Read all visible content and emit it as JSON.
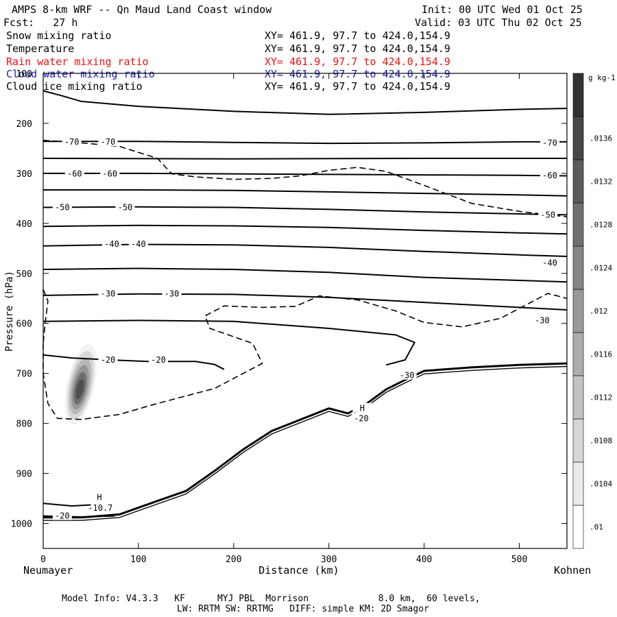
{
  "header": {
    "title": "AMPS 8-km WRF -- Qn Maud Land Coast window",
    "init": "Init: 00 UTC Wed 01 Oct 25",
    "fcst": "Fcst:   27 h",
    "valid": "Valid: 03 UTC Thu 02 Oct 25"
  },
  "fields": [
    {
      "name": "Snow mixing ratio",
      "xy": "XY= 461.9, 97.7 to 424.0,154.9",
      "color": "#000000"
    },
    {
      "name": "Temperature",
      "xy": "XY= 461.9, 97.7 to 424.0,154.9",
      "color": "#000000"
    },
    {
      "name": "Rain water mixing ratio",
      "xy": "XY= 461.9, 97.7 to 424.0,154.9",
      "color": "#ee1111"
    },
    {
      "name": "Cloud water mixing ratio",
      "xy": "XY= 461.9, 97.7 to 424.0,154.9",
      "color": "#1a1aaa"
    },
    {
      "name": "Cloud ice mixing ratio",
      "xy": "XY= 461.9, 97.7 to 424.0,154.9",
      "color": "#000000"
    }
  ],
  "left_label": "Neumayer",
  "right_label": "Kohnen",
  "footer": {
    "line1": "Model Info: V4.3.3   KF      MYJ PBL  Morrison             8.0 km,  60 levels,",
    "line2": "LW: RRTM SW: RRTMG   DIFF: simple KM: 2D Smagor"
  },
  "chart_data": {
    "type": "cross-section contour",
    "xlabel": "Distance (km)",
    "ylabel": "Pressure (hPa)",
    "xlim": [
      0,
      550
    ],
    "ylim": [
      1050,
      100
    ],
    "x_ticks": [
      0,
      100,
      200,
      300,
      400,
      500
    ],
    "x_tick_labels": [
      "0",
      "100",
      "200",
      "300",
      "400",
      "500"
    ],
    "y_ticks": [
      100,
      200,
      300,
      400,
      500,
      600,
      700,
      800,
      900,
      1000
    ],
    "y_tick_labels": [
      "100",
      "200",
      "300",
      "400",
      "500",
      "600",
      "700",
      "800",
      "900",
      "1000"
    ],
    "colorbar": {
      "unit": "g kg-1",
      "levels": [
        0.01,
        0.0104,
        0.0108,
        0.0112,
        0.0116,
        0.012,
        0.0124,
        0.0128,
        0.0132,
        0.0136,
        0.014
      ],
      "labels": [
        ".01",
        ".0104",
        ".0108",
        ".0112",
        ".0116",
        ".012",
        ".0124",
        ".0128",
        ".0132",
        ".0136"
      ]
    },
    "temperature_contours": [
      {
        "id": "t1",
        "pts": [
          [
            0,
            135
          ],
          [
            20,
            145
          ],
          [
            40,
            156
          ],
          [
            100,
            166
          ],
          [
            200,
            176
          ],
          [
            300,
            182
          ],
          [
            400,
            178
          ],
          [
            500,
            172
          ],
          [
            550,
            170
          ]
        ]
      },
      {
        "id": "t2",
        "pts": [
          [
            0,
            236
          ],
          [
            100,
            236
          ],
          [
            200,
            238
          ],
          [
            300,
            240
          ],
          [
            400,
            239
          ],
          [
            500,
            237
          ],
          [
            550,
            237
          ]
        ]
      },
      {
        "id": "t3",
        "pts": [
          [
            0,
            270
          ],
          [
            200,
            271
          ],
          [
            400,
            270
          ],
          [
            550,
            270
          ]
        ]
      },
      {
        "id": "t4",
        "pts": [
          [
            0,
            300
          ],
          [
            100,
            300
          ],
          [
            200,
            301
          ],
          [
            300,
            302
          ],
          [
            400,
            303
          ],
          [
            500,
            304
          ],
          [
            550,
            305
          ]
        ]
      },
      {
        "id": "t5",
        "pts": [
          [
            0,
            333
          ],
          [
            100,
            333
          ],
          [
            200,
            334
          ],
          [
            300,
            337
          ],
          [
            400,
            340
          ],
          [
            500,
            343
          ],
          [
            550,
            345
          ]
        ]
      },
      {
        "id": "t6",
        "pts": [
          [
            0,
            368
          ],
          [
            100,
            367
          ],
          [
            200,
            368
          ],
          [
            300,
            372
          ],
          [
            400,
            377
          ],
          [
            500,
            381
          ],
          [
            550,
            383
          ]
        ]
      },
      {
        "id": "t7",
        "pts": [
          [
            0,
            406
          ],
          [
            100,
            404
          ],
          [
            200,
            405
          ],
          [
            300,
            408
          ],
          [
            400,
            414
          ],
          [
            500,
            419
          ],
          [
            550,
            421
          ]
        ]
      },
      {
        "id": "t8",
        "pts": [
          [
            0,
            445
          ],
          [
            100,
            442
          ],
          [
            200,
            443
          ],
          [
            300,
            448
          ],
          [
            400,
            456
          ],
          [
            500,
            463
          ],
          [
            550,
            466
          ]
        ]
      },
      {
        "id": "t9",
        "pts": [
          [
            0,
            492
          ],
          [
            100,
            490
          ],
          [
            200,
            492
          ],
          [
            300,
            498
          ],
          [
            400,
            508
          ],
          [
            500,
            514
          ],
          [
            550,
            517
          ]
        ]
      },
      {
        "id": "t10",
        "pts": [
          [
            0,
            544
          ],
          [
            100,
            541
          ],
          [
            200,
            542
          ],
          [
            300,
            548
          ],
          [
            400,
            558
          ],
          [
            500,
            568
          ],
          [
            550,
            573
          ]
        ]
      },
      {
        "id": "t11",
        "pts": [
          [
            0,
            596
          ],
          [
            100,
            594
          ],
          [
            200,
            596
          ],
          [
            300,
            610
          ],
          [
            370,
            623
          ],
          [
            390,
            638
          ],
          [
            380,
            673
          ],
          [
            360,
            683
          ]
        ]
      },
      {
        "id": "t12",
        "pts": [
          [
            0,
            663
          ],
          [
            30,
            669
          ],
          [
            70,
            673
          ],
          [
            110,
            676
          ],
          [
            160,
            676
          ],
          [
            180,
            682
          ],
          [
            190,
            692
          ]
        ]
      },
      {
        "id": "t13",
        "pts": [
          [
            0,
            985
          ],
          [
            40,
            987
          ],
          [
            75,
            985
          ]
        ]
      },
      {
        "id": "t14",
        "pts": [
          [
            0,
            960
          ],
          [
            30,
            965
          ],
          [
            60,
            962
          ]
        ]
      }
    ],
    "ice_contour": {
      "pts": [
        [
          0,
          1048
        ],
        [
          0,
          1045
        ]
      ]
    },
    "snow_contour_dashed": [
      {
        "id": "s1",
        "pts": [
          [
            0,
            234
          ],
          [
            40,
            239
          ],
          [
            80,
            246
          ],
          [
            120,
            270
          ],
          [
            135,
            301
          ],
          [
            160,
            307
          ],
          [
            200,
            312
          ],
          [
            240,
            310
          ],
          [
            270,
            305
          ],
          [
            300,
            294
          ],
          [
            330,
            288
          ],
          [
            360,
            296
          ],
          [
            400,
            324
          ],
          [
            450,
            360
          ],
          [
            500,
            376
          ],
          [
            550,
            387
          ]
        ]
      },
      {
        "id": "s2",
        "pts": [
          [
            0,
            532
          ],
          [
            5,
            555
          ],
          [
            2,
            600
          ],
          [
            0,
            640
          ]
        ]
      },
      {
        "id": "s3",
        "pts": [
          [
            0,
            640
          ],
          [
            0,
            700
          ],
          [
            5,
            760
          ],
          [
            15,
            790
          ],
          [
            40,
            792
          ],
          [
            80,
            782
          ],
          [
            120,
            760
          ],
          [
            180,
            730
          ],
          [
            230,
            680
          ],
          [
            220,
            640
          ],
          [
            175,
            610
          ],
          [
            170,
            585
          ],
          [
            190,
            565
          ],
          [
            230,
            568
          ],
          [
            265,
            566
          ],
          [
            290,
            545
          ],
          [
            330,
            553
          ],
          [
            370,
            575
          ],
          [
            400,
            598
          ],
          [
            440,
            607
          ],
          [
            480,
            590
          ],
          [
            510,
            560
          ],
          [
            530,
            540
          ],
          [
            550,
            550
          ]
        ]
      }
    ],
    "terrain": {
      "pts": [
        [
          0,
          988
        ],
        [
          40,
          988
        ],
        [
          80,
          982
        ],
        [
          120,
          955
        ],
        [
          150,
          935
        ],
        [
          180,
          895
        ],
        [
          210,
          852
        ],
        [
          240,
          815
        ],
        [
          260,
          800
        ],
        [
          280,
          785
        ],
        [
          300,
          770
        ],
        [
          320,
          780
        ],
        [
          340,
          760
        ],
        [
          360,
          732
        ],
        [
          380,
          713
        ],
        [
          400,
          695
        ],
        [
          450,
          688
        ],
        [
          500,
          683
        ],
        [
          550,
          680
        ]
      ]
    },
    "labels": [
      {
        "text": "-70",
        "x": 30,
        "p": 237
      },
      {
        "text": "-70",
        "x": 68,
        "p": 237
      },
      {
        "text": "-70",
        "x": 532,
        "p": 239
      },
      {
        "text": "-60",
        "x": 33,
        "p": 301
      },
      {
        "text": "-60",
        "x": 70,
        "p": 301
      },
      {
        "text": "-60",
        "x": 532,
        "p": 304
      },
      {
        "text": "-50",
        "x": 20,
        "p": 368
      },
      {
        "text": "-50",
        "x": 86,
        "p": 368
      },
      {
        "text": "-50",
        "x": 530,
        "p": 383
      },
      {
        "text": "-40",
        "x": 72,
        "p": 441
      },
      {
        "text": "-40",
        "x": 100,
        "p": 441
      },
      {
        "text": "-40",
        "x": 532,
        "p": 479
      },
      {
        "text": "-30",
        "x": 68,
        "p": 541
      },
      {
        "text": "-30",
        "x": 135,
        "p": 541
      },
      {
        "text": "-30",
        "x": 524,
        "p": 594
      },
      {
        "text": "-20",
        "x": 68,
        "p": 673
      },
      {
        "text": "-20",
        "x": 121,
        "p": 673
      },
      {
        "text": "-20",
        "x": 334,
        "p": 790
      },
      {
        "text": "-30",
        "x": 382,
        "p": 704
      },
      {
        "text": "-10.7",
        "x": 60,
        "p": 969
      },
      {
        "text": "-20",
        "x": 20,
        "p": 985
      },
      {
        "text": "H",
        "x": 335,
        "p": 770
      },
      {
        "text": "H",
        "x": 59,
        "p": 948
      }
    ],
    "shaded_maximum": {
      "x_km": 38,
      "p_hpa": 735,
      "value": 0.014
    }
  }
}
